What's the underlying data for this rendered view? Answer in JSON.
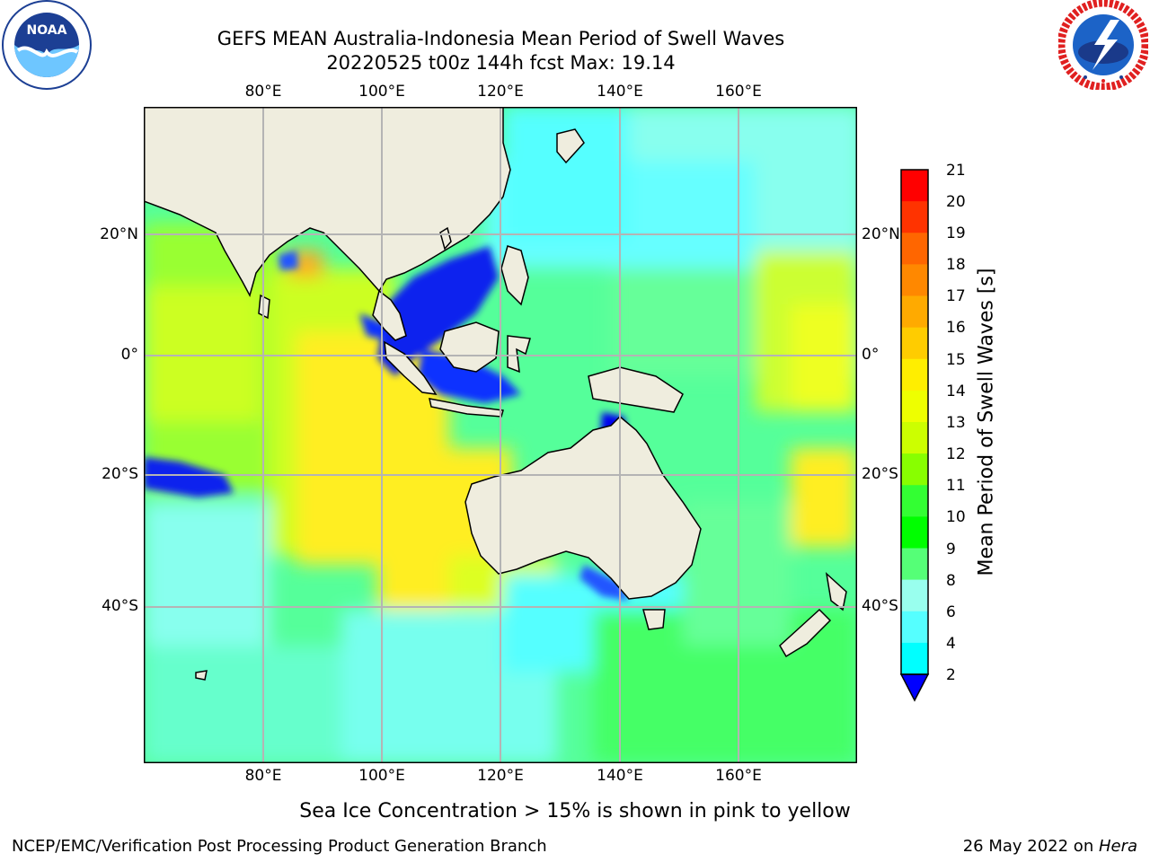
{
  "header": {
    "title_line1": "GEFS MEAN Australia-Indonesia Mean Period of Swell Waves",
    "title_line2": "20220525 t00z 144h fcst   Max: 19.14"
  },
  "logos": {
    "left": {
      "text": "NOAA",
      "icon": "noaa-logo-icon"
    },
    "right": {
      "icon": "nws-logo-icon"
    }
  },
  "map": {
    "lon_ticks": [
      "80°E",
      "100°E",
      "120°E",
      "140°E",
      "160°E"
    ],
    "lat_ticks": [
      "20°N",
      "0°",
      "20°S",
      "40°S"
    ],
    "grid": true,
    "lon_range": [
      60,
      180
    ],
    "lat_range": [
      -70,
      40
    ],
    "land_color": "#efedde",
    "grid_color": "#b4b4b4"
  },
  "colorbar": {
    "label": "Mean Period of Swell Waves [s]",
    "ticks": [
      "21",
      "20",
      "19",
      "18",
      "17",
      "16",
      "15",
      "14",
      "13",
      "12",
      "11",
      "10",
      "9",
      "8",
      "6",
      "4",
      "2"
    ],
    "colors": [
      "#ff0000",
      "#ff3300",
      "#ff6600",
      "#ff8800",
      "#ffaa00",
      "#ffcc00",
      "#ffee00",
      "#eeff00",
      "#ccff00",
      "#88ff00",
      "#33ff33",
      "#00ff00",
      "#55ff77",
      "#99ffee",
      "#55ffff",
      "#00ffff",
      "#00ccff",
      "#0077ff",
      "#0000ff"
    ],
    "extend": "min"
  },
  "note": "Sea Ice Concentration > 15% is shown in pink to yellow",
  "footer": {
    "left": "NCEP/EMC/Verification Post Processing Product Generation Branch",
    "right_prefix": "26 May 2022 on ",
    "right_machine": "Hera"
  }
}
